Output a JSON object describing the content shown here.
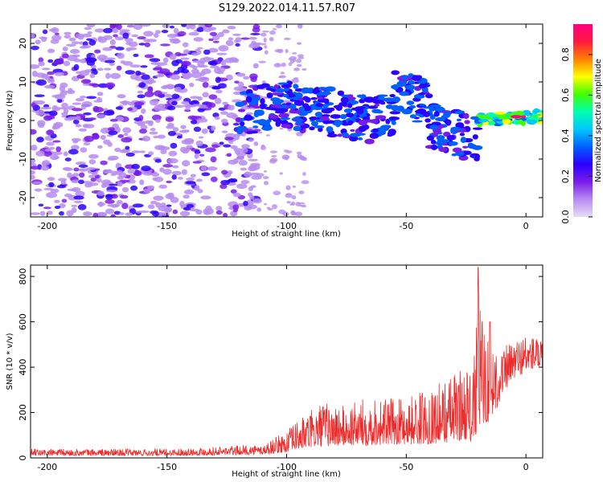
{
  "title": "S129.2022.014.11.57.R07",
  "chart_data": [
    {
      "type": "heatmap",
      "xlabel": "Height of straight line (km)",
      "ylabel": "Frequency (Hz)",
      "xlim": [
        -207,
        7
      ],
      "ylim": [
        -25,
        25
      ],
      "xticks": [
        -200,
        -150,
        -100,
        -50,
        0
      ],
      "yticks": [
        -20,
        -10,
        0,
        10,
        20
      ],
      "colorbar": {
        "label": "Normalized spectral amplitude",
        "range": [
          0,
          0.95
        ],
        "ticks": [
          "0.0",
          "0.2",
          "0.4",
          "0.6",
          "0.8"
        ],
        "colors": [
          "#e8dcf8",
          "#b68cf0",
          "#7a1ce8",
          "#2a00ff",
          "#0060ff",
          "#00c8ff",
          "#00ffb0",
          "#40ff00",
          "#ffff00",
          "#ff8000",
          "#ff1a40",
          "#ff0080"
        ]
      },
      "ridge_segments": [
        {
          "x": [
            -120,
            -100
          ],
          "f_center": [
            2,
            4
          ]
        },
        {
          "x": [
            -100,
            -60
          ],
          "f_center": [
            4,
            0
          ]
        },
        {
          "x": [
            -55,
            -40
          ],
          "f_center": [
            8,
            4
          ]
        },
        {
          "x": [
            -40,
            -20
          ],
          "f_center": [
            -1,
            -5
          ]
        },
        {
          "x": [
            -20,
            7
          ],
          "f_center": [
            0,
            1
          ]
        }
      ],
      "peak": {
        "x": -4,
        "f": 1,
        "amplitude": 0.95
      }
    },
    {
      "type": "line",
      "xlabel": "Height of straight line (km)",
      "ylabel": "SNR (10 * v/v)",
      "xlim": [
        -207,
        7
      ],
      "ylim": [
        0,
        850
      ],
      "xticks": [
        -200,
        -150,
        -100,
        -50,
        0
      ],
      "yticks": [
        0,
        200,
        400,
        600,
        800
      ],
      "line_color": "#ee2b2b",
      "series_envelope": {
        "x": [
          -207,
          -150,
          -110,
          -100,
          -95,
          -85,
          -75,
          -65,
          -55,
          -45,
          -35,
          -25,
          -22,
          -20,
          -18,
          -15,
          -12,
          -10,
          -5,
          0,
          5,
          7
        ],
        "low": [
          10,
          10,
          15,
          25,
          40,
          50,
          55,
          55,
          60,
          60,
          65,
          80,
          60,
          120,
          150,
          160,
          220,
          280,
          350,
          380,
          400,
          380
        ],
        "high": [
          40,
          40,
          60,
          120,
          170,
          250,
          230,
          280,
          260,
          290,
          340,
          420,
          380,
          840,
          600,
          580,
          520,
          480,
          530,
          550,
          540,
          500
        ]
      },
      "annotations": [
        {
          "x": -20,
          "y": 840
        },
        {
          "x": -15,
          "y": 600
        }
      ]
    }
  ]
}
